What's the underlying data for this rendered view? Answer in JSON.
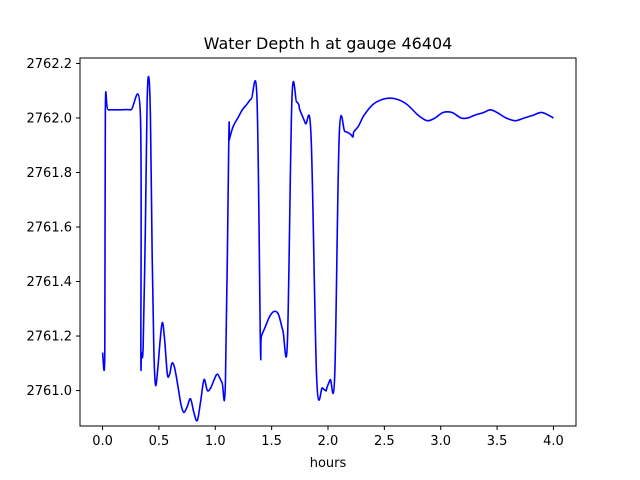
{
  "chart_data": {
    "type": "line",
    "title": "Water Depth h at gauge 46404",
    "xlabel": "hours",
    "ylabel": "",
    "xlim": [
      -0.2,
      4.2
    ],
    "ylim": [
      2760.87,
      2762.22
    ],
    "xticks": [
      0.0,
      0.5,
      1.0,
      1.5,
      2.0,
      2.5,
      3.0,
      3.5,
      4.0
    ],
    "xtick_labels": [
      "0.0",
      "0.5",
      "1.0",
      "1.5",
      "2.0",
      "2.5",
      "3.0",
      "3.5",
      "4.0"
    ],
    "yticks": [
      2761.0,
      2761.2,
      2761.4,
      2761.6,
      2761.8,
      2762.0,
      2762.2
    ],
    "ytick_labels": [
      "2761.0",
      "2761.2",
      "2761.4",
      "2761.6",
      "2761.8",
      "2762.0",
      "2762.2"
    ],
    "grid": false,
    "series": [
      {
        "color": "#0000ff",
        "x": [
          0.0,
          0.02,
          0.025,
          0.05,
          0.15,
          0.25,
          0.335,
          0.34,
          0.345,
          0.36,
          0.38,
          0.395,
          0.41,
          0.425,
          0.44,
          0.455,
          0.47,
          0.49,
          0.51,
          0.53,
          0.55,
          0.575,
          0.595,
          0.615,
          0.635,
          0.655,
          0.675,
          0.695,
          0.72,
          0.75,
          0.78,
          0.81,
          0.84,
          0.87,
          0.9,
          0.93,
          0.96,
          0.99,
          1.02,
          1.06,
          1.09,
          1.12,
          1.125,
          1.13,
          1.16,
          1.2,
          1.24,
          1.28,
          1.32,
          1.37,
          1.4,
          1.405,
          1.41,
          1.44,
          1.48,
          1.52,
          1.56,
          1.6,
          1.64,
          1.68,
          1.72,
          1.74,
          1.745,
          1.75,
          1.8,
          1.85,
          1.9,
          1.95,
          1.98,
          1.985,
          1.99,
          2.02,
          2.06,
          2.1,
          2.15,
          2.2,
          2.22,
          2.225,
          2.23,
          2.27,
          2.32,
          2.4,
          2.5,
          2.6,
          2.7,
          2.8,
          2.88,
          2.95,
          3.02,
          3.1,
          3.18,
          3.24,
          3.3,
          3.38,
          3.44,
          3.5,
          3.58,
          3.66,
          3.74,
          3.82,
          3.9,
          4.0
        ],
        "y": [
          2761.14,
          2761.14,
          2762.03,
          2762.03,
          2762.03,
          2762.03,
          2762.02,
          2761.14,
          2761.14,
          2761.16,
          2761.6,
          2762.05,
          2762.15,
          2762.0,
          2761.5,
          2761.15,
          2761.02,
          2761.08,
          2761.18,
          2761.25,
          2761.19,
          2761.06,
          2761.06,
          2761.1,
          2761.09,
          2761.05,
          2761.0,
          2760.95,
          2760.92,
          2760.94,
          2760.97,
          2760.92,
          2760.89,
          2760.96,
          2761.04,
          2761.0,
          2761.01,
          2761.04,
          2761.06,
          2761.03,
          2761.03,
          2761.92,
          2761.92,
          2761.93,
          2761.97,
          2762.0,
          2762.03,
          2762.05,
          2762.07,
          2762.07,
          2761.18,
          2761.18,
          2761.2,
          2761.23,
          2761.27,
          2761.29,
          2761.28,
          2761.22,
          2761.18,
          2762.07,
          2762.06,
          2762.05,
          2762.04,
          2762.03,
          2761.98,
          2761.93,
          2761.04,
          2761.01,
          2761.0,
          2761.0,
          2761.01,
          2761.04,
          2761.06,
          2761.94,
          2761.95,
          2761.94,
          2761.93,
          2761.94,
          2761.95,
          2761.97,
          2762.01,
          2762.05,
          2762.07,
          2762.07,
          2762.05,
          2762.01,
          2761.99,
          2762.0,
          2762.02,
          2762.02,
          2762.0,
          2762.0,
          2762.01,
          2762.02,
          2762.03,
          2762.02,
          2762.0,
          2761.99,
          2762.0,
          2762.01,
          2762.02,
          2762.0
        ]
      }
    ]
  }
}
